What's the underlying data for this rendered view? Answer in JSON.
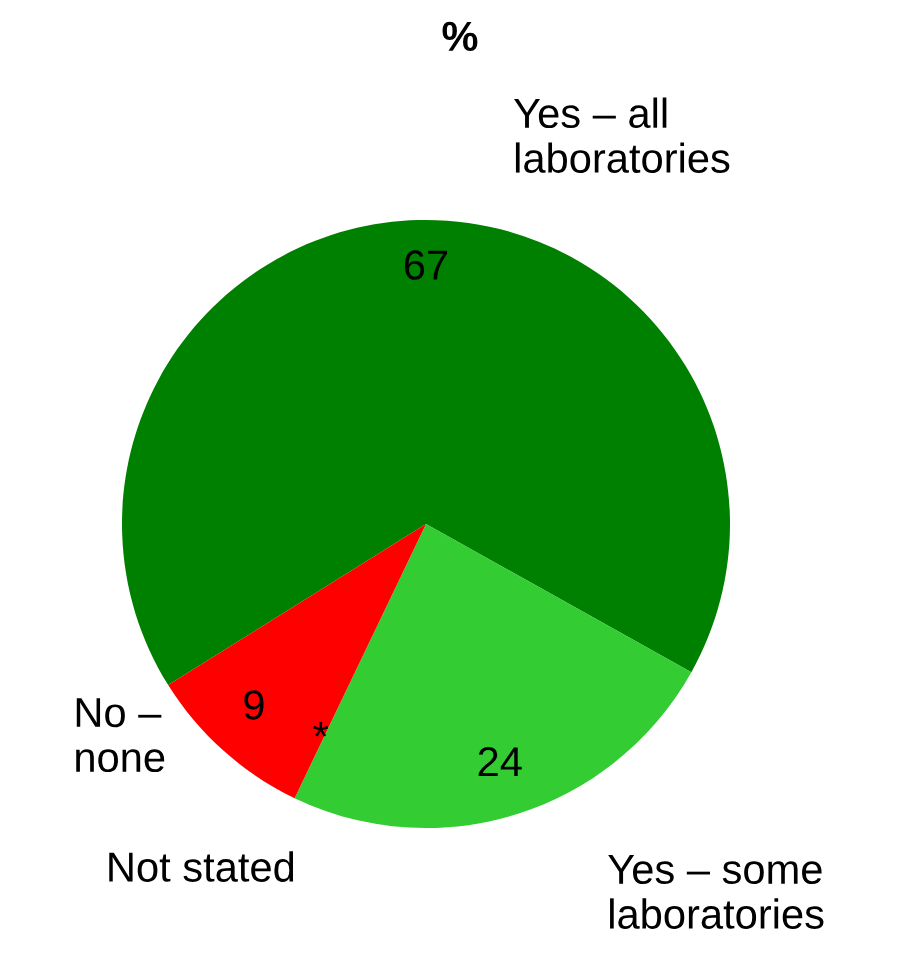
{
  "chart_data": {
    "type": "pie",
    "title": "%",
    "categories": [
      "Yes – all\nlaboratories",
      "Yes – some\nlaboratories",
      "Not stated",
      "No –\nnone"
    ],
    "values": [
      67,
      24,
      0,
      9
    ],
    "value_labels": [
      "67",
      "24",
      "*",
      "9"
    ],
    "colors": [
      "#008000",
      "#33cc33",
      "#ffffff",
      "#ff0000"
    ]
  }
}
